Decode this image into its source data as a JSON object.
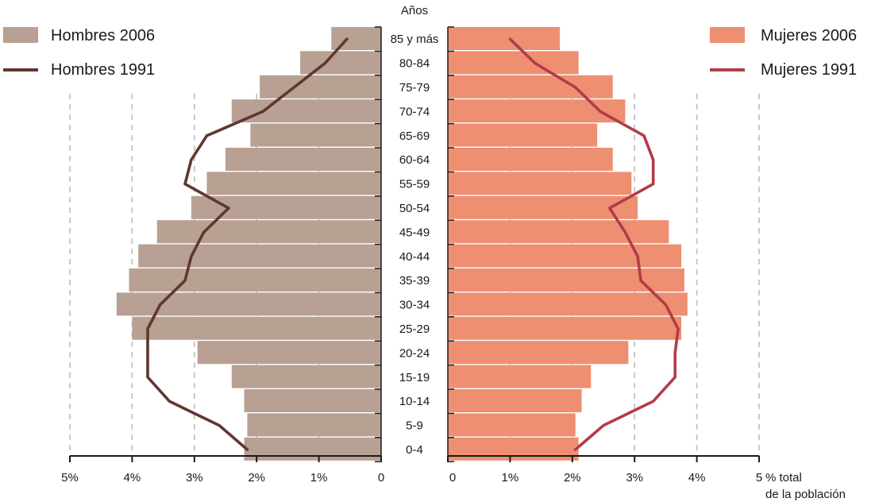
{
  "chart_data": {
    "type": "bar",
    "subtype": "population-pyramid",
    "age_axis_title": "Años",
    "x_axis_title_line1": "% total",
    "x_axis_title_line2": "de la población",
    "categories": [
      "0-4",
      "5-9",
      "10-14",
      "15-19",
      "20-24",
      "25-29",
      "30-34",
      "35-39",
      "40-44",
      "45-49",
      "50-54",
      "55-59",
      "60-64",
      "65-69",
      "70-74",
      "75-79",
      "80-84",
      "85 y más"
    ],
    "left_ticks": [
      "5%",
      "4%",
      "3%",
      "2%",
      "1%",
      "0"
    ],
    "right_ticks": [
      "0",
      "1%",
      "2%",
      "3%",
      "4%",
      "5"
    ],
    "xlim": [
      0,
      5
    ],
    "grid": true,
    "series": [
      {
        "name": "Hombres 2006",
        "side": "left",
        "kind": "bar",
        "color": "#b8a093",
        "values": [
          2.2,
          2.15,
          2.2,
          2.4,
          2.95,
          4.0,
          4.25,
          4.05,
          3.9,
          3.6,
          3.05,
          2.8,
          2.5,
          2.1,
          2.4,
          1.95,
          1.3,
          0.8
        ]
      },
      {
        "name": "Hombres 1991",
        "side": "left",
        "kind": "line",
        "color": "#5e3830",
        "values": [
          2.15,
          2.6,
          3.4,
          3.75,
          3.75,
          3.75,
          3.55,
          3.15,
          3.05,
          2.85,
          2.45,
          3.15,
          3.05,
          2.8,
          1.9,
          1.4,
          0.9,
          0.55
        ]
      },
      {
        "name": "Mujeres 2006",
        "side": "right",
        "kind": "bar",
        "color": "#ee8f72",
        "values": [
          2.1,
          2.05,
          2.15,
          2.3,
          2.9,
          3.75,
          3.85,
          3.8,
          3.75,
          3.55,
          3.05,
          2.95,
          2.65,
          2.4,
          2.85,
          2.65,
          2.1,
          1.8
        ]
      },
      {
        "name": "Mujeres 1991",
        "side": "right",
        "kind": "line",
        "color": "#b23c48",
        "values": [
          2.05,
          2.5,
          3.3,
          3.65,
          3.65,
          3.7,
          3.5,
          3.1,
          3.05,
          2.85,
          2.6,
          3.3,
          3.3,
          3.15,
          2.45,
          2.05,
          1.4,
          1.0
        ]
      }
    ],
    "legend": [
      "top-left",
      "top-right"
    ]
  }
}
